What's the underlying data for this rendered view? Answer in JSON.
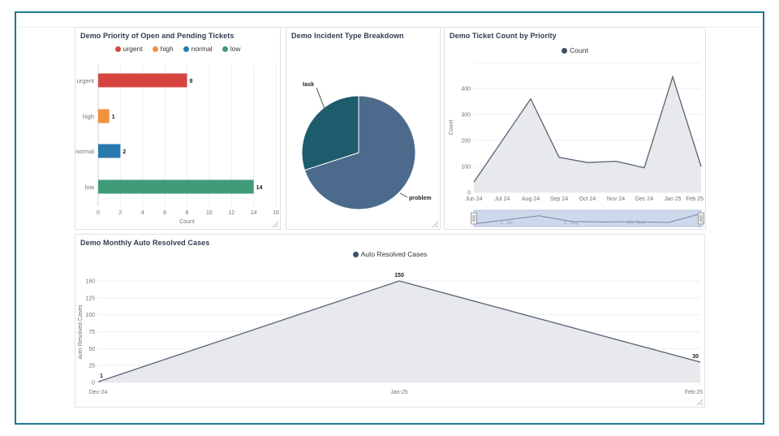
{
  "colors": {
    "frame_border": "#1c7a8e",
    "panel_border": "#dfe2e6",
    "title_text": "#2f3c4f",
    "axis_text": "#6b7480",
    "gridline": "#eceef1",
    "legend_dot": "#3e4f68",
    "area_fill": "#e7e9ed",
    "area_line": "#596373",
    "navigator_fill": "#cdd8ea",
    "navigator_line": "#7289aa"
  },
  "chart_data": [
    {
      "id": "priority_bars",
      "type": "bar",
      "orientation": "horizontal",
      "title": "Demo Priority of Open and Pending Tickets",
      "categories": [
        "urgent",
        "high",
        "normal",
        "low"
      ],
      "values": [
        8,
        1,
        2,
        14
      ],
      "colors": [
        "#d6453f",
        "#f1913d",
        "#2779ae",
        "#3f9b78"
      ],
      "legend": [
        "urgent",
        "high",
        "normal",
        "low"
      ],
      "xlabel": "Count",
      "xticks": [
        0,
        2,
        4,
        6,
        8,
        10,
        12,
        14,
        16
      ],
      "xlim": [
        0,
        16
      ],
      "grid": "vertical"
    },
    {
      "id": "incident_pie",
      "type": "pie",
      "title": "Demo Incident Type Breakdown",
      "slices": [
        {
          "label": "problem",
          "pct": 70,
          "color": "#4c6a8b"
        },
        {
          "label": "task",
          "pct": 30,
          "color": "#1d5b6d"
        }
      ]
    },
    {
      "id": "ticket_count_area",
      "type": "area",
      "title": "Demo Ticket Count by Priority",
      "legend": [
        "Count"
      ],
      "categories": [
        "Jun 24",
        "Jul 24",
        "Aug 24",
        "Sep 24",
        "Oct 24",
        "Nov 24",
        "Dec 24",
        "Jan 25",
        "Feb 25"
      ],
      "values": [
        40,
        200,
        360,
        135,
        115,
        120,
        95,
        445,
        100
      ],
      "ylabel": "Count",
      "yticks": [
        0,
        100,
        200,
        300,
        400
      ],
      "ylim": [
        0,
        500
      ],
      "grid": "horizontal",
      "legend_position": "top-center",
      "navigator_labels": [
        "1. Jul",
        "1. Sep",
        "28. Nov"
      ]
    },
    {
      "id": "auto_resolved_area",
      "type": "area",
      "title": "Demo Monthly Auto Resolved Cases",
      "legend": [
        "Auto Resolved Cases"
      ],
      "categories": [
        "Dec-24",
        "Jan-25",
        "Feb-25"
      ],
      "values": [
        1,
        150,
        30
      ],
      "point_labels": [
        "1",
        "150",
        "30"
      ],
      "ylabel": "Auto Resolved Cases",
      "yticks": [
        0,
        25,
        50,
        75,
        100,
        125,
        150
      ],
      "ylim": [
        0,
        160
      ],
      "grid": "horizontal",
      "legend_position": "top-center"
    }
  ]
}
